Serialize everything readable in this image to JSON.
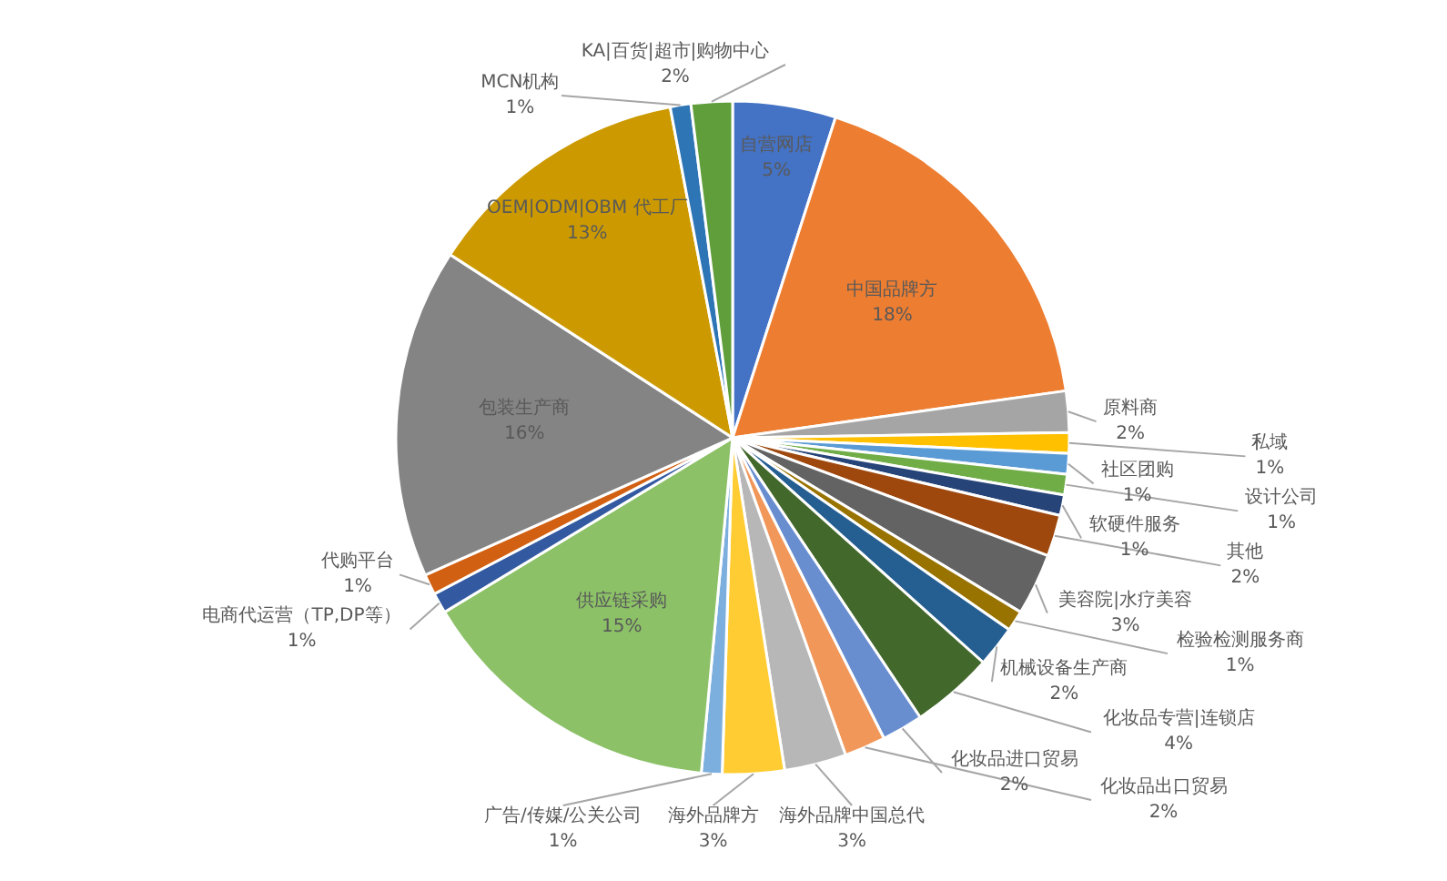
{
  "chart_data": {
    "type": "pie",
    "categories": [
      "自营网店",
      "中国品牌方",
      "原料商",
      "私域",
      "社区团购",
      "设计公司",
      "软硬件服务",
      "其他",
      "美容院|水疗美容",
      "检验检测服务商",
      "机械设备生产商",
      "化妆品专营|连锁店",
      "化妆品进口贸易",
      "化妆品出口贸易",
      "海外品牌中国总代",
      "海外品牌方",
      "广告/传媒/公关公司",
      "供应链采购",
      "电商代运营（TP,DP等）",
      "代购平台",
      "包装生产商",
      "OEM|ODM|OBM 代工厂",
      "MCN机构",
      "KA|百货|超市|购物中心"
    ],
    "values": [
      5,
      18,
      2,
      1,
      1,
      1,
      1,
      2,
      3,
      1,
      2,
      4,
      2,
      2,
      3,
      3,
      1,
      15,
      1,
      1,
      16,
      13,
      1,
      2
    ],
    "value_labels": [
      "5%",
      "18%",
      "2%",
      "1%",
      "1%",
      "1%",
      "1%",
      "2%",
      "3%",
      "1%",
      "2%",
      "4%",
      "2%",
      "2%",
      "3%",
      "3%",
      "1%",
      "15%",
      "1%",
      "1%",
      "16%",
      "13%",
      "1%",
      "2%"
    ],
    "colors": [
      "#4472c4",
      "#ed7d31",
      "#a5a5a5",
      "#ffc000",
      "#5b9bd5",
      "#70ad47",
      "#264478",
      "#9e480e",
      "#636363",
      "#997300",
      "#255e91",
      "#43682b",
      "#698ed0",
      "#f1975a",
      "#b7b7b7",
      "#ffcd33",
      "#7cafdd",
      "#8cc168",
      "#335aa1",
      "#d26012",
      "#848484",
      "#cc9a00",
      "#2e75b6",
      "#5f9e3a"
    ]
  }
}
